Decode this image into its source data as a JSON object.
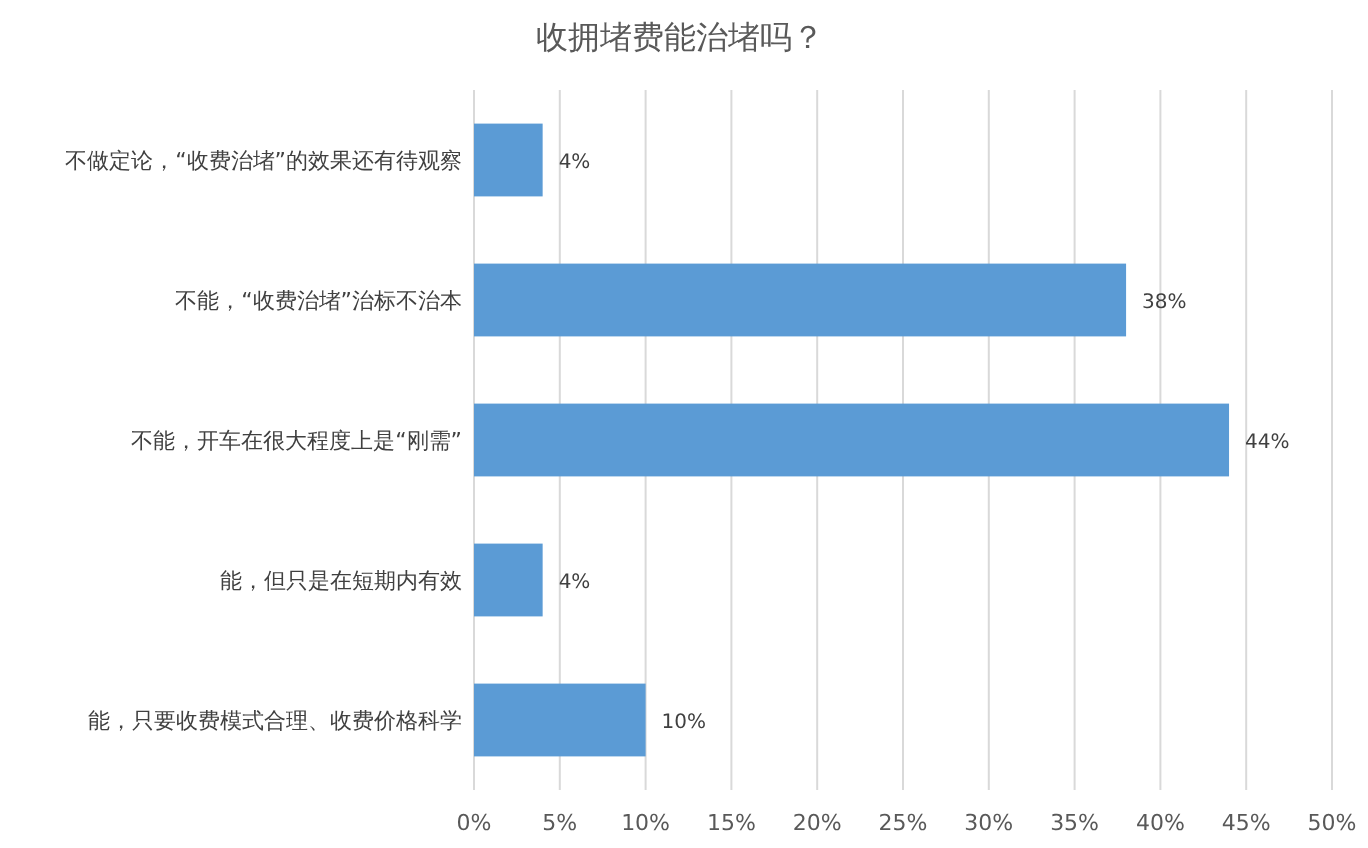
{
  "chart_data": {
    "type": "bar",
    "orientation": "horizontal",
    "title": "收拥堵费能治堵吗？",
    "categories": [
      "不做定论，“收费治堵”的效果还有待观察",
      "不能，“收费治堵”治标不治本",
      "不能，开车在很大程度上是“刚需”",
      "能，但只是在短期内有效",
      "能，只要收费模式合理、收费价格科学"
    ],
    "values": [
      4,
      38,
      44,
      4,
      10
    ],
    "value_labels": [
      "4%",
      "38%",
      "44%",
      "4%",
      "10%"
    ],
    "color": "#5b9bd5",
    "xlim": [
      0,
      50
    ],
    "xticks": [
      {
        "value": 0,
        "label": "0%"
      },
      {
        "value": 5,
        "label": "5%"
      },
      {
        "value": 10,
        "label": "10%"
      },
      {
        "value": 15,
        "label": "15%"
      },
      {
        "value": 20,
        "label": "20%"
      },
      {
        "value": 25,
        "label": "25%"
      },
      {
        "value": 30,
        "label": "30%"
      },
      {
        "value": 35,
        "label": "35%"
      },
      {
        "value": 40,
        "label": "40%"
      },
      {
        "value": 45,
        "label": "45%"
      },
      {
        "value": 50,
        "label": "50%"
      }
    ],
    "grid": "x"
  }
}
